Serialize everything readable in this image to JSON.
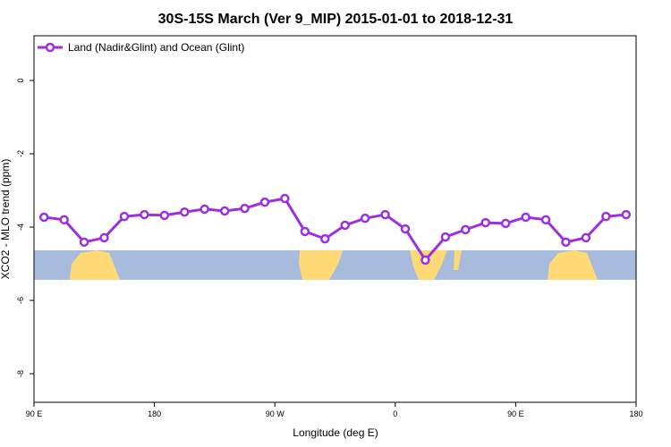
{
  "chart_data": {
    "type": "line",
    "title": "30S-15S March (Ver 9_MIP)   2015-01-01 to 2018-12-31",
    "x_label": "Longitude (deg E)",
    "y_label": "XCO2 - MLO trend (ppm)",
    "xlim": [
      90,
      540
    ],
    "ylim": [
      -8.78,
      1.22
    ],
    "xticks": [
      {
        "value": 90,
        "label": "90 E"
      },
      180,
      {
        "value": 270,
        "label": "90 W"
      },
      {
        "value": 360,
        "label": "0"
      },
      {
        "value": 450,
        "label": "90 E"
      },
      {
        "value": 540,
        "label": "180"
      }
    ],
    "yticks": [
      0,
      -2,
      -4,
      -6,
      -8
    ],
    "x": [
      97.5,
      112.5,
      127.5,
      142.5,
      157.5,
      172.5,
      187.5,
      202.5,
      217.5,
      232.5,
      247.5,
      262.5,
      277.5,
      292.5,
      307.5,
      322.5,
      337.5,
      352.5,
      367.5,
      382.5,
      397.5,
      412.5,
      427.5,
      442.5,
      457.5,
      472.5,
      487.5,
      502.5,
      517.5,
      532.5
    ],
    "series": [
      {
        "name": "Land (Nadir&Glint) and Ocean (Glint)",
        "color": "#9b30e0",
        "values": [
          -3.73,
          -3.8,
          -4.41,
          -4.29,
          -3.71,
          -3.66,
          -3.68,
          -3.59,
          -3.51,
          -3.56,
          -3.49,
          -3.32,
          -3.22,
          -4.12,
          -4.32,
          -3.95,
          -3.76,
          -3.66,
          -4.05,
          -4.9,
          -4.27,
          -4.07,
          -3.88,
          -3.9,
          -3.73,
          -3.8,
          -4.41,
          -4.29,
          -3.71,
          -3.66
        ]
      }
    ],
    "legend": "upper left"
  }
}
